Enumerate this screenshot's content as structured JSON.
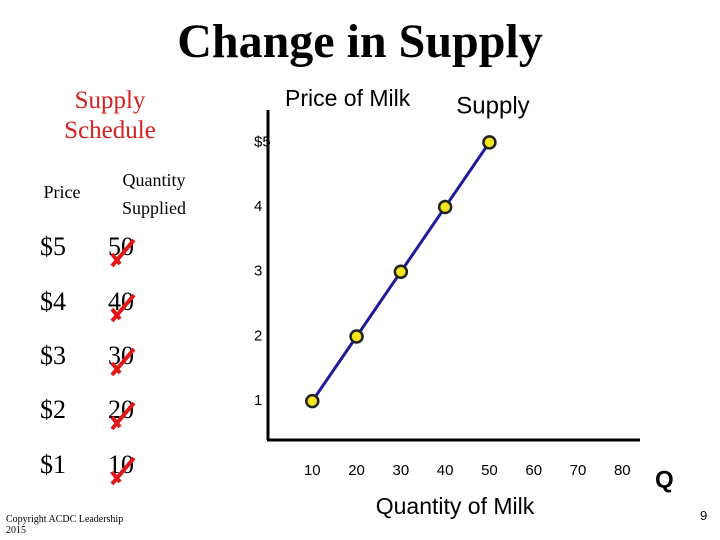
{
  "title": "Change in Supply",
  "schedule": {
    "title": "Supply Schedule",
    "headers": [
      "Price",
      "Quantity Supplied"
    ],
    "rows": [
      [
        "$5",
        "50"
      ],
      [
        "$4",
        "40"
      ],
      [
        "$3",
        "30"
      ],
      [
        "$2",
        "20"
      ],
      [
        "$1",
        "10"
      ]
    ]
  },
  "chart_data": {
    "type": "line",
    "ylabel": "Price of Milk",
    "xlabel": "Quantity of Milk",
    "annotations": [
      "Q"
    ],
    "x": [
      10,
      20,
      30,
      40,
      50
    ],
    "series": [
      {
        "name": "Supply",
        "color": "#1c1c9c",
        "values": [
          1,
          2,
          3,
          4,
          5
        ]
      }
    ],
    "marker_color": "#f2e51c",
    "xlim": [
      0,
      84
    ],
    "xticks": [
      10,
      20,
      30,
      40,
      50,
      60,
      70,
      80
    ],
    "ylim": [
      0.4,
      5.5
    ],
    "yticks": [
      1,
      2,
      3,
      4,
      {
        "value": 5,
        "label": "$5"
      }
    ],
    "grid": false
  },
  "footer": {
    "copyright": "Copyright ACDC Leadership 2015",
    "page": "9"
  }
}
